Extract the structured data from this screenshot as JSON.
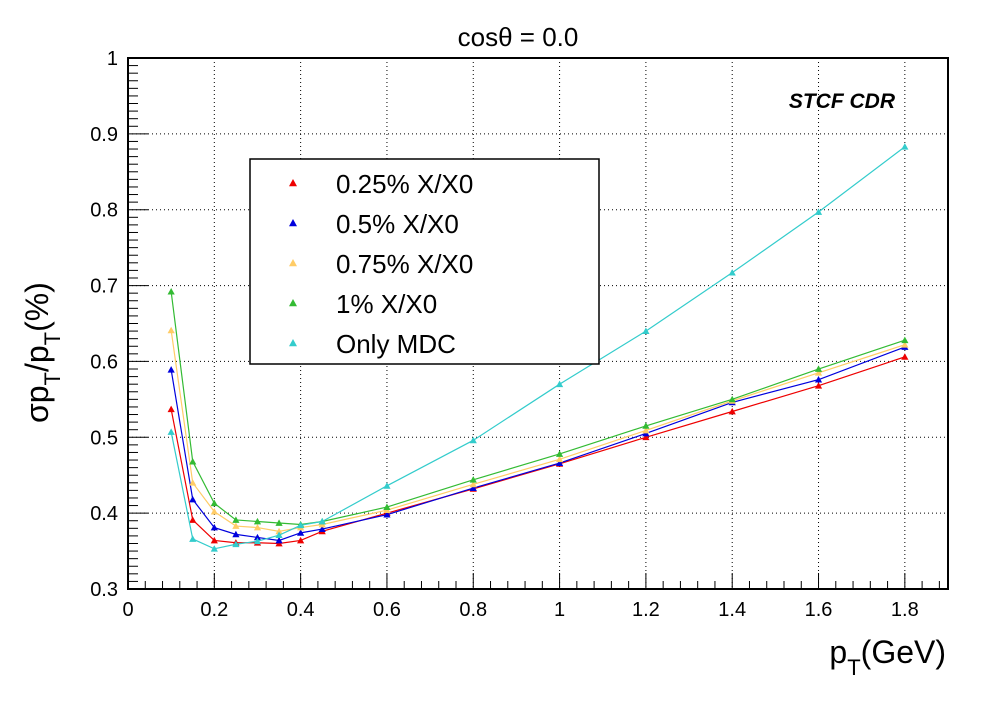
{
  "chart_data": {
    "type": "line",
    "title": "cosθ = 0.0",
    "annotation": "STCF CDR",
    "xlabel": {
      "main": "p",
      "sub": "T",
      "suffix": "(GeV)"
    },
    "ylabel": {
      "sigma": "σ",
      "p1": "p",
      "sub1": "T",
      "slash": "/p",
      "sub2": "T",
      "suffix": "(%)"
    },
    "xlim": [
      0,
      1.9
    ],
    "ylim": [
      0.3,
      1.0
    ],
    "grid": true,
    "legend_position": "upper-left",
    "x_ticks": [
      "0",
      "0.2",
      "0.4",
      "0.6",
      "0.8",
      "1",
      "1.2",
      "1.4",
      "1.6",
      "1.8"
    ],
    "y_ticks": [
      "0.3",
      "0.4",
      "0.5",
      "0.6",
      "0.7",
      "0.8",
      "0.9",
      "1"
    ],
    "x": [
      0.1,
      0.15,
      0.2,
      0.25,
      0.3,
      0.35,
      0.4,
      0.45,
      0.6,
      0.8,
      1.0,
      1.2,
      1.4,
      1.6,
      1.8
    ],
    "series": [
      {
        "name": "0.25% X/X0",
        "color": "#ee0000",
        "values": [
          0.537,
          0.391,
          0.364,
          0.361,
          0.361,
          0.36,
          0.364,
          0.376,
          0.4,
          0.432,
          0.465,
          0.5,
          0.534,
          0.568,
          0.606
        ]
      },
      {
        "name": "0.5% X/X0",
        "color": "#0000dd",
        "values": [
          0.589,
          0.418,
          0.381,
          0.372,
          0.368,
          0.364,
          0.374,
          0.379,
          0.398,
          0.433,
          0.466,
          0.505,
          0.546,
          0.576,
          0.619
        ]
      },
      {
        "name": "0.75% X/X0",
        "color": "#ffcc66",
        "values": [
          0.641,
          0.44,
          0.402,
          0.383,
          0.381,
          0.376,
          0.381,
          0.385,
          0.404,
          0.438,
          0.471,
          0.509,
          0.548,
          0.585,
          0.622
        ]
      },
      {
        "name": "1% X/X0",
        "color": "#33bb33",
        "values": [
          0.692,
          0.468,
          0.413,
          0.391,
          0.389,
          0.387,
          0.385,
          0.389,
          0.408,
          0.444,
          0.478,
          0.515,
          0.55,
          0.59,
          0.628
        ]
      },
      {
        "name": "Only MDC",
        "color": "#33cccc",
        "values": [
          0.507,
          0.366,
          0.353,
          0.359,
          0.363,
          0.371,
          0.384,
          0.389,
          0.436,
          0.496,
          0.57,
          0.64,
          0.717,
          0.797,
          0.883
        ]
      }
    ]
  }
}
